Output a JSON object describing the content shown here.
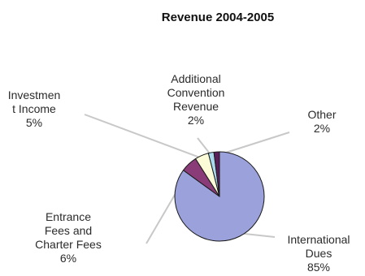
{
  "chart_data": {
    "type": "pie",
    "title": "Revenue 2004-2005",
    "slices": [
      {
        "label_lines": [
          "International",
          "Dues",
          "85%"
        ],
        "value": 85,
        "color": "#9aa1db"
      },
      {
        "label_lines": [
          "Entrance",
          "Fees and",
          "Charter Fees",
          "6%"
        ],
        "value": 6,
        "color": "#8a3c78"
      },
      {
        "label_lines": [
          "Investmen",
          "t Income",
          "5%"
        ],
        "value": 5,
        "color": "#fbfbd8"
      },
      {
        "label_lines": [
          "Additional",
          "Convention",
          "Revenue",
          "2%"
        ],
        "value": 2,
        "color": "#aad8ec"
      },
      {
        "label_lines": [
          "Other",
          "2%"
        ],
        "value": 2,
        "color": "#5a1f5a"
      }
    ]
  }
}
